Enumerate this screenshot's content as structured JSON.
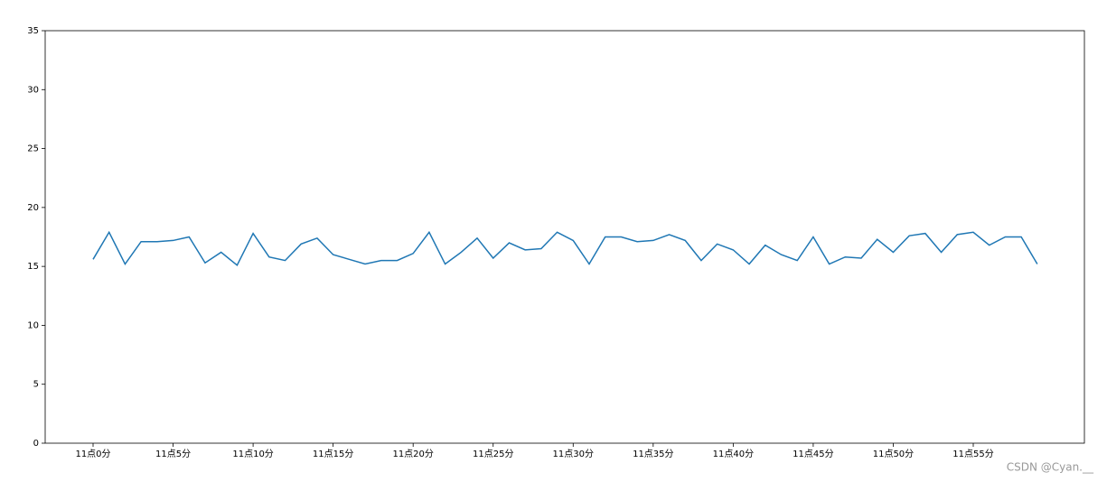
{
  "chart_data": {
    "type": "line",
    "categories": [
      "11点0分",
      null,
      null,
      null,
      null,
      "11点5分",
      null,
      null,
      null,
      null,
      "11点10分",
      null,
      null,
      null,
      null,
      "11点15分",
      null,
      null,
      null,
      null,
      "11点20分",
      null,
      null,
      null,
      null,
      "11点25分",
      null,
      null,
      null,
      null,
      "11点30分",
      null,
      null,
      null,
      null,
      "11点35分",
      null,
      null,
      null,
      null,
      "11点40分",
      null,
      null,
      null,
      null,
      "11点45分",
      null,
      null,
      null,
      null,
      "11点50分",
      null,
      null,
      null,
      null,
      "11点55分",
      null,
      null,
      null,
      null
    ],
    "series": [
      {
        "color": "#1f77b4",
        "values": [
          15.6,
          17.9,
          15.2,
          17.1,
          17.1,
          17.2,
          17.5,
          15.3,
          16.2,
          15.1,
          17.8,
          15.8,
          15.5,
          16.9,
          17.4,
          16.0,
          15.6,
          15.2,
          15.5,
          15.5,
          16.1,
          17.9,
          15.2,
          16.2,
          17.4,
          15.7,
          17.0,
          16.4,
          16.5,
          17.9,
          17.2,
          15.2,
          17.5,
          17.5,
          17.1,
          17.2,
          17.7,
          17.2,
          15.5,
          16.9,
          16.4,
          15.2,
          16.8,
          16.0,
          15.5,
          17.5,
          15.2,
          15.8,
          15.7,
          17.3,
          16.2,
          17.6,
          17.8,
          16.2,
          17.7,
          17.9,
          16.8,
          17.5,
          17.5,
          15.2
        ]
      }
    ],
    "ylim": [
      0,
      35
    ],
    "yticks": [
      0,
      5,
      10,
      15,
      20,
      25,
      30,
      35
    ]
  },
  "watermark": "CSDN @Cyan.__"
}
